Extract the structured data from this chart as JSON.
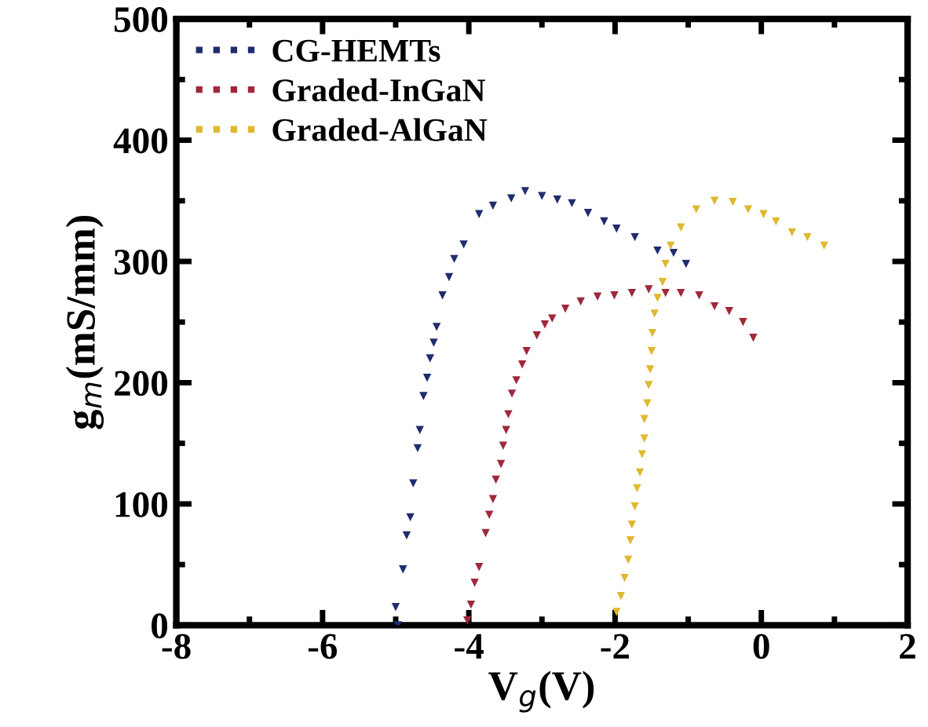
{
  "chart_data": {
    "type": "scatter",
    "xlabel": "V$_{g}$(V)",
    "ylabel": "g$_{m}$(mS/mm)",
    "xlim": [
      -8,
      2
    ],
    "xticks": [
      -8,
      -6,
      -4,
      -2,
      0,
      2
    ],
    "ylim": [
      0,
      500
    ],
    "yticks": [
      0,
      100,
      200,
      300,
      400,
      500
    ],
    "marker": "triangle",
    "legend": "top left",
    "grid": false,
    "series": [
      {
        "name": "CG-HEMTs",
        "color": "#1f2d6e",
        "x": [
          -4.97,
          -5.0,
          -4.9,
          -4.85,
          -4.8,
          -4.76,
          -4.7,
          -4.67,
          -4.62,
          -4.57,
          -4.53,
          -4.48,
          -4.44,
          -4.36,
          -4.27,
          -4.2,
          -4.07,
          -3.86,
          -3.67,
          -3.42,
          -3.23,
          -3.0,
          -2.79,
          -2.59,
          -2.37,
          -2.15,
          -1.98,
          -1.73,
          -1.42,
          -1.2,
          -1.03
        ],
        "values": [
          0,
          15,
          46,
          74,
          89,
          117,
          146,
          161,
          189,
          204,
          220,
          233,
          246,
          272,
          287,
          302,
          314,
          339,
          346,
          352,
          358,
          354,
          351,
          348,
          340,
          333,
          327,
          320,
          309,
          307,
          298
        ]
      },
      {
        "name": "Graded-InGaN",
        "color": "#a0283a",
        "x": [
          -4.02,
          -3.97,
          -3.92,
          -3.86,
          -3.77,
          -3.72,
          -3.67,
          -3.63,
          -3.56,
          -3.53,
          -3.49,
          -3.46,
          -3.41,
          -3.35,
          -3.27,
          -3.21,
          -3.07,
          -2.96,
          -2.86,
          -2.68,
          -2.47,
          -2.24,
          -2.01,
          -1.77,
          -1.54,
          -1.31,
          -1.1,
          -0.85,
          -0.64,
          -0.44,
          -0.25,
          -0.11
        ],
        "values": [
          4,
          17,
          35,
          48,
          76,
          91,
          104,
          120,
          133,
          148,
          161,
          174,
          191,
          202,
          215,
          226,
          239,
          248,
          253,
          261,
          267,
          271,
          272,
          274,
          277,
          274,
          274,
          272,
          263,
          259,
          250,
          237
        ]
      },
      {
        "name": "Graded-AlGaN",
        "color": "#e0b830",
        "x": [
          -1.98,
          -1.92,
          -1.87,
          -1.82,
          -1.79,
          -1.77,
          -1.73,
          -1.7,
          -1.66,
          -1.63,
          -1.6,
          -1.6,
          -1.56,
          -1.54,
          -1.52,
          -1.5,
          -1.49,
          -1.46,
          -1.42,
          -1.35,
          -1.31,
          -1.24,
          -1.1,
          -0.89,
          -0.64,
          -0.39,
          -0.18,
          0.03,
          0.2,
          0.42,
          0.63,
          0.86
        ],
        "values": [
          11,
          24,
          39,
          54,
          70,
          83,
          98,
          113,
          126,
          141,
          154,
          170,
          183,
          198,
          211,
          226,
          241,
          257,
          270,
          283,
          298,
          313,
          328,
          343,
          350,
          349,
          343,
          339,
          333,
          324,
          320,
          313
        ]
      }
    ]
  }
}
